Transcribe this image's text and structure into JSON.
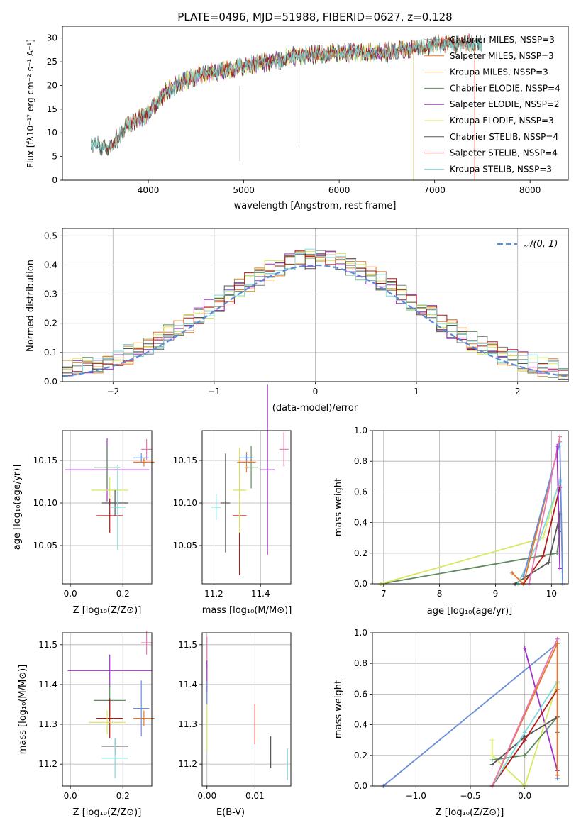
{
  "colors": {
    "chabrier_miles": "#7a7a7a",
    "salpeter_miles": "#e8782a",
    "kroupa_miles": "#c88a2a",
    "chabrier_elodie": "#5f8a5f",
    "salpeter_elodie": "#a030c8",
    "kroupa_elodie": "#d8e860",
    "chabrier_stelib": "#555555",
    "salpeter_stelib": "#b01818",
    "kroupa_stelib": "#80dada",
    "pink": "#e878b0",
    "blue": "#6a8ed8",
    "normal_curve": "#5b8ad8",
    "grid": "#b0b0b0"
  },
  "chart_data": [
    {
      "id": "spectrum",
      "type": "line",
      "title": "PLATE=0496, MJD=51988, FIBERID=0627, z=0.128",
      "xlabel": "wavelength [Angstrom, rest frame]",
      "ylabel": "Flux [fλ10⁻¹⁷ erg cm⁻² s⁻¹ A⁻¹]",
      "xlim": [
        3100,
        8400
      ],
      "ylim": [
        0,
        32.5
      ],
      "xticks": [
        4000,
        5000,
        6000,
        7000,
        8000
      ],
      "yticks": [
        0,
        5,
        10,
        15,
        20,
        25,
        30
      ],
      "legend_loc": "right",
      "legend": [
        "Chabrier MILES, NSSP=3",
        "Salpeter MILES, NSSP=3",
        "Kroupa MILES, NSSP=3",
        "Chabrier ELODIE, NSSP=4",
        "Salpeter ELODIE, NSSP=2",
        "Kroupa ELODIE, NSSP=3",
        "Chabrier STELIB, NSSP=4",
        "Salpeter STELIB, NSSP=4",
        "Kroupa STELIB, NSSP=3"
      ],
      "continuum": {
        "x": [
          3400,
          3600,
          3800,
          4000,
          4200,
          4500,
          5000,
          5500,
          6000,
          6500,
          7000,
          7500
        ],
        "y": [
          7.5,
          7,
          12,
          14,
          19,
          22,
          24,
          26,
          27,
          27,
          28.5,
          29
        ]
      },
      "data_range_x": [
        3400,
        7500
      ]
    },
    {
      "id": "residuals",
      "type": "line",
      "xlabel": "(data-model)/error",
      "ylabel": "Normed distribution",
      "xlim": [
        -2.5,
        2.5
      ],
      "ylim": [
        0,
        0.525
      ],
      "xticks": [
        -2,
        -1,
        0,
        1,
        2
      ],
      "yticks": [
        0.0,
        0.1,
        0.2,
        0.3,
        0.4,
        0.5
      ],
      "grid": true,
      "legend_loc": "upper right",
      "legend": [
        "𝒩(0, 1)"
      ]
    },
    {
      "id": "age-vs-Z",
      "type": "scatter",
      "xlabel": "Z [log₁₀(Z/Z⊙)]",
      "ylabel": "age  [log₁₀(age/yr)]",
      "xlim": [
        -0.03,
        0.31
      ],
      "ylim": [
        10.005,
        10.185
      ],
      "xticks": [
        0.0,
        0.2
      ],
      "yticks": [
        10.05,
        10.1,
        10.15
      ],
      "grid": true,
      "points": [
        {
          "series": "salpeter_elodie",
          "x": 0.14,
          "y": 10.139,
          "xerr": 0.16,
          "yerr": 0.037
        },
        {
          "series": "chabrier_elodie",
          "x": 0.14,
          "y": 10.142,
          "xerr": 0.05,
          "yerr": 0.025
        },
        {
          "series": "kroupa_elodie",
          "x": 0.15,
          "y": 10.115,
          "xerr": 0.07,
          "yerr": 0.015
        },
        {
          "series": "salpeter_stelib",
          "x": 0.15,
          "y": 10.085,
          "xerr": 0.05,
          "yerr": 0.02
        },
        {
          "series": "chabrier_stelib",
          "x": 0.17,
          "y": 10.1,
          "xerr": 0.05,
          "yerr": 0.015
        },
        {
          "series": "kroupa_stelib",
          "x": 0.18,
          "y": 10.095,
          "xerr": 0.03,
          "yerr": 0.05
        },
        {
          "series": "blue",
          "x": 0.27,
          "y": 10.153,
          "xerr": 0.03,
          "yerr": 0.006
        },
        {
          "series": "salpeter_miles",
          "x": 0.28,
          "y": 10.148,
          "xerr": 0.04,
          "yerr": 0.005
        },
        {
          "series": "pink",
          "x": 0.29,
          "y": 10.163,
          "xerr": 0.02,
          "yerr": 0.012
        }
      ]
    },
    {
      "id": "age-vs-mass",
      "type": "scatter",
      "xlabel": "mass [log₁₀(M/M⊙)]",
      "xlim": [
        11.15,
        11.53
      ],
      "ylim": [
        10.005,
        10.185
      ],
      "xticks": [
        11.2,
        11.4
      ],
      "yticks": [
        10.05,
        10.1,
        10.15
      ],
      "grid": true,
      "points": [
        {
          "series": "kroupa_stelib",
          "x": 11.21,
          "y": 10.095,
          "xerr": 0.02,
          "yerr": 0.015
        },
        {
          "series": "chabrier_stelib",
          "x": 11.25,
          "y": 10.1,
          "xerr": 0.02,
          "yerr": 0.058
        },
        {
          "series": "salpeter_stelib",
          "x": 11.31,
          "y": 10.085,
          "xerr": 0.03,
          "yerr": 0.07
        },
        {
          "series": "kroupa_elodie",
          "x": 11.31,
          "y": 10.115,
          "xerr": 0.03,
          "yerr": 0.05
        },
        {
          "series": "chabrier_elodie",
          "x": 11.36,
          "y": 10.142,
          "xerr": 0.03,
          "yerr": 0.025
        },
        {
          "series": "salpeter_miles",
          "x": 11.34,
          "y": 10.148,
          "xerr": 0.04,
          "yerr": 0.012
        },
        {
          "series": "blue",
          "x": 11.34,
          "y": 10.153,
          "xerr": 0.03,
          "yerr": 0.005
        },
        {
          "series": "salpeter_elodie",
          "x": 11.43,
          "y": 10.139,
          "xerr": 0.03,
          "yerr": 0.1
        },
        {
          "series": "pink",
          "x": 11.5,
          "y": 10.163,
          "xerr": 0.02,
          "yerr": 0.02
        }
      ]
    },
    {
      "id": "mass-weight-vs-age",
      "type": "line",
      "xlabel": "age  [log₁₀(age/yr)]",
      "ylabel": "mass weight",
      "xlim": [
        6.8,
        10.3
      ],
      "ylim": [
        0,
        1.0
      ],
      "xticks": [
        7,
        8,
        9,
        10
      ],
      "yticks": [
        0.0,
        0.2,
        0.4,
        0.6,
        0.8,
        1.0
      ],
      "grid": true,
      "series": [
        {
          "color": "chabrier_elodie",
          "x": [
            6.95,
            10.1,
            10.15,
            10.15
          ],
          "y": [
            0.0,
            0.2,
            0.34,
            0.46
          ]
        },
        {
          "color": "kroupa_elodie",
          "x": [
            6.95,
            9.85,
            10.15
          ],
          "y": [
            0.0,
            0.3,
            0.68
          ]
        },
        {
          "color": "salpeter_stelib",
          "x": [
            9.5,
            9.85,
            10.15
          ],
          "y": [
            0.0,
            0.18,
            0.63
          ]
        },
        {
          "color": "chabrier_stelib",
          "x": [
            9.35,
            9.95,
            10.15
          ],
          "y": [
            0.0,
            0.14,
            0.45
          ]
        },
        {
          "color": "kroupa_stelib",
          "x": [
            9.4,
            9.8,
            10.15,
            10.15
          ],
          "y": [
            0.0,
            0.3,
            0.67,
            0.68
          ]
        },
        {
          "color": "salpeter_miles",
          "x": [
            9.3,
            9.5,
            10.15
          ],
          "y": [
            0.07,
            0.0,
            0.93
          ]
        },
        {
          "color": "blue",
          "x": [
            9.5,
            10.15,
            10.2
          ],
          "y": [
            0.05,
            0.92,
            0.0
          ]
        },
        {
          "color": "pink",
          "x": [
            9.6,
            10.15
          ],
          "y": [
            0.0,
            0.96
          ]
        },
        {
          "color": "salpeter_elodie",
          "x": [
            10.1,
            10.15
          ],
          "y": [
            0.9,
            0.1
          ]
        }
      ]
    },
    {
      "id": "mass-vs-Z",
      "type": "scatter",
      "xlabel": "Z [log₁₀(Z/Z⊙)]",
      "ylabel": "mass [log₁₀(M/M⊙)]",
      "xlim": [
        -0.03,
        0.31
      ],
      "ylim": [
        11.145,
        11.53
      ],
      "xticks": [
        0.0,
        0.2
      ],
      "yticks": [
        11.2,
        11.3,
        11.4,
        11.5
      ],
      "grid": true,
      "points": [
        {
          "series": "salpeter_elodie",
          "x": 0.15,
          "y": 11.435,
          "xerr": 0.16,
          "yerr": 0.04
        },
        {
          "series": "chabrier_elodie",
          "x": 0.15,
          "y": 11.36,
          "xerr": 0.06,
          "yerr": 0.04
        },
        {
          "series": "salpeter_stelib",
          "x": 0.15,
          "y": 11.315,
          "xerr": 0.05,
          "yerr": 0.05
        },
        {
          "series": "kroupa_elodie",
          "x": 0.14,
          "y": 11.305,
          "xerr": 0.07,
          "yerr": 0.03
        },
        {
          "series": "chabrier_stelib",
          "x": 0.17,
          "y": 11.245,
          "xerr": 0.05,
          "yerr": 0.02
        },
        {
          "series": "kroupa_stelib",
          "x": 0.17,
          "y": 11.215,
          "xerr": 0.05,
          "yerr": 0.05
        },
        {
          "series": "blue",
          "x": 0.27,
          "y": 11.34,
          "xerr": 0.03,
          "yerr": 0.07
        },
        {
          "series": "salpeter_miles",
          "x": 0.28,
          "y": 11.315,
          "xerr": 0.04,
          "yerr": 0.02
        },
        {
          "series": "pink",
          "x": 0.29,
          "y": 11.505,
          "xerr": 0.02,
          "yerr": 0.03
        }
      ]
    },
    {
      "id": "mass-vs-ebv",
      "type": "scatter",
      "xlabel": "E(B-V)",
      "xlim": [
        -0.001,
        0.0175
      ],
      "ylim": [
        11.145,
        11.53
      ],
      "xticks": [
        0.0,
        0.01
      ],
      "yticks": [
        11.2,
        11.3,
        11.4,
        11.5
      ],
      "grid": true,
      "points": [
        {
          "series": "pink",
          "x": 0.0,
          "y": 11.48,
          "yerr": 0.04
        },
        {
          "series": "salpeter_elodie",
          "x": 0.0,
          "y": 11.42,
          "yerr": 0.04
        },
        {
          "series": "blue",
          "x": 0.0,
          "y": 11.38,
          "yerr": 0.03
        },
        {
          "series": "kroupa_elodie",
          "x": 0.0,
          "y": 11.29,
          "yerr": 0.06
        },
        {
          "series": "salpeter_stelib",
          "x": 0.01,
          "y": 11.3,
          "yerr": 0.05
        },
        {
          "series": "chabrier_stelib",
          "x": 0.0133,
          "y": 11.23,
          "yerr": 0.04
        },
        {
          "series": "kroupa_stelib",
          "x": 0.0168,
          "y": 11.2,
          "yerr": 0.04
        }
      ]
    },
    {
      "id": "mass-weight-vs-Z",
      "type": "line",
      "xlabel": "Z [log₁₀(Z/Z⊙)]",
      "ylabel": "mass weight",
      "xlim": [
        -1.4,
        0.4
      ],
      "ylim": [
        0,
        1.0
      ],
      "xticks": [
        -1.0,
        -0.5,
        0.0
      ],
      "yticks": [
        0.0,
        0.2,
        0.4,
        0.6,
        0.8,
        1.0
      ],
      "grid": true,
      "series": [
        {
          "color": "blue",
          "x": [
            -1.3,
            0.3,
            0.3
          ],
          "y": [
            0.0,
            0.93,
            0.05
          ]
        },
        {
          "color": "salpeter_elodie",
          "x": [
            0.0,
            0.3
          ],
          "y": [
            0.9,
            0.1
          ]
        },
        {
          "color": "kroupa_elodie",
          "x": [
            -0.3,
            -0.3,
            0.0,
            0.3
          ],
          "y": [
            0.3,
            0.2,
            0.0,
            0.67
          ]
        },
        {
          "color": "chabrier_elodie",
          "x": [
            -0.3,
            0.0,
            0.3,
            0.3
          ],
          "y": [
            0.17,
            0.2,
            0.45,
            0.35
          ]
        },
        {
          "color": "chabrier_stelib",
          "x": [
            -0.3,
            0.0,
            0.3
          ],
          "y": [
            0.14,
            0.32,
            0.45
          ]
        },
        {
          "color": "salpeter_stelib",
          "x": [
            -0.3,
            0.0,
            0.3
          ],
          "y": [
            0.0,
            0.3,
            0.63
          ]
        },
        {
          "color": "kroupa_stelib",
          "x": [
            -0.3,
            0.0,
            0.3
          ],
          "y": [
            0.0,
            0.35,
            0.68
          ]
        },
        {
          "color": "salpeter_miles",
          "x": [
            -0.3,
            0.3,
            0.3
          ],
          "y": [
            0.0,
            0.93,
            0.07
          ]
        },
        {
          "color": "pink",
          "x": [
            -0.3,
            0.3
          ],
          "y": [
            0.0,
            0.96
          ]
        }
      ]
    }
  ]
}
